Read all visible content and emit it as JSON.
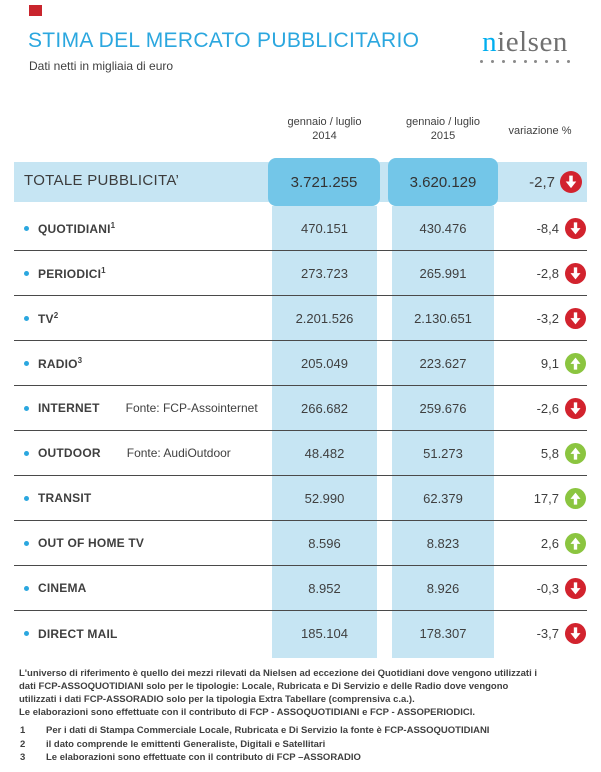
{
  "page": {
    "title": "STIMA DEL MERCATO PUBBLICITARIO",
    "subtitle": "Dati netti in migliaia di euro"
  },
  "logo": {
    "first_letter": "n",
    "rest": "ielsen",
    "dot_count": 9
  },
  "table": {
    "headers": {
      "col_2014_line1": "gennaio / luglio",
      "col_2014_line2": "2014",
      "col_2015_line1": "gennaio / luglio",
      "col_2015_line2": "2015",
      "variation": "variazione %"
    },
    "total": {
      "label": "TOTALE PUBBLICITA’",
      "v2014": "3.721.255",
      "v2015": "3.620.129",
      "variation": "-2,7",
      "direction": "down"
    },
    "rows": [
      {
        "label": "QUOTIDIANI",
        "sup": "1",
        "fonte": "",
        "v2014": "470.151",
        "v2015": "430.476",
        "variation": "-8,4",
        "direction": "down"
      },
      {
        "label": "PERIODICI",
        "sup": "1",
        "fonte": "",
        "v2014": "273.723",
        "v2015": "265.991",
        "variation": "-2,8",
        "direction": "down"
      },
      {
        "label": "TV",
        "sup": "2",
        "fonte": "",
        "v2014": "2.201.526",
        "v2015": "2.130.651",
        "variation": "-3,2",
        "direction": "down"
      },
      {
        "label": "RADIO",
        "sup": "3",
        "fonte": "",
        "v2014": "205.049",
        "v2015": "223.627",
        "variation": "9,1",
        "direction": "up"
      },
      {
        "label": "INTERNET",
        "sup": "",
        "fonte": "Fonte: FCP-Assointernet",
        "v2014": "266.682",
        "v2015": "259.676",
        "variation": "-2,6",
        "direction": "down"
      },
      {
        "label": "OUTDOOR",
        "sup": "",
        "fonte": "Fonte: AudiOutdoor",
        "v2014": "48.482",
        "v2015": "51.273",
        "variation": "5,8",
        "direction": "up"
      },
      {
        "label": "TRANSIT",
        "sup": "",
        "fonte": "",
        "v2014": "52.990",
        "v2015": "62.379",
        "variation": "17,7",
        "direction": "up"
      },
      {
        "label": "OUT OF HOME TV",
        "sup": "",
        "fonte": "",
        "v2014": "8.596",
        "v2015": "8.823",
        "variation": "2,6",
        "direction": "up"
      },
      {
        "label": "CINEMA",
        "sup": "",
        "fonte": "",
        "v2014": "8.952",
        "v2015": "8.926",
        "variation": "-0,3",
        "direction": "down"
      },
      {
        "label": "DIRECT MAIL",
        "sup": "",
        "fonte": "",
        "v2014": "185.104",
        "v2015": "178.307",
        "variation": "-3,7",
        "direction": "down"
      }
    ]
  },
  "footer": {
    "paragraph1": "L'universo di riferimento è quello dei mezzi rilevati da Nielsen ad eccezione dei Quotidiani dove vengono utilizzati i dati FCP-ASSOQUOTIDIANI solo per le tipologie: Locale, Rubricata e Di Servizio e delle Radio dove vengono utilizzati i dati FCP-ASSORADIO solo per la tipologia Extra Tabellare (comprensiva c.a.).",
    "paragraph2": "Le elaborazioni sono effettuate con il contributo di FCP - ASSOQUOTIDIANI e FCP - ASSOPERIODICI.",
    "notes": [
      {
        "num": "1",
        "text": "Per i dati di Stampa Commerciale Locale, Rubricata e Di Servizio la fonte è  FCP-ASSOQUOTIDIANI"
      },
      {
        "num": "2",
        "text": "il dato comprende le emittenti Generaliste, Digitali e Satellitari"
      },
      {
        "num": "3",
        "text": "Le elaborazioni sono effettuate con il contributo di FCP –ASSORADIO"
      }
    ]
  },
  "colors": {
    "accent_blue": "#2ba7df",
    "band_light_blue": "#c6e5f3",
    "total_block_blue": "#73c6e8",
    "up_green": "#8bc540",
    "down_red": "#d2232e",
    "red_square": "#c9252d",
    "logo_blue": "#00aeef"
  }
}
